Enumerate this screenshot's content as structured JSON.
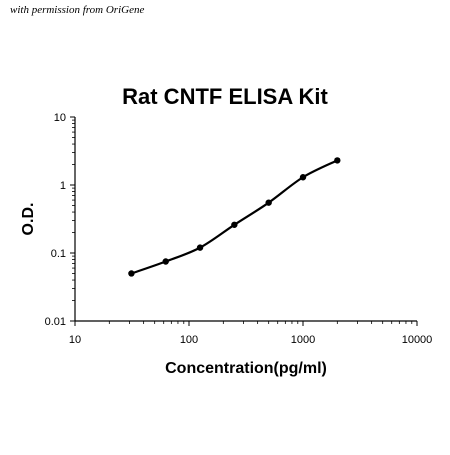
{
  "watermark": "with permission from OriGene",
  "chart_data": {
    "type": "line",
    "title": "Rat CNTF ELISA Kit",
    "xlabel": "Concentration(pg/ml)",
    "ylabel": "O.D.",
    "xscale": "log",
    "yscale": "log",
    "xlim": [
      10,
      10000
    ],
    "ylim": [
      0.01,
      10
    ],
    "x_ticks": [
      "10",
      "100",
      "1000",
      "10000"
    ],
    "y_ticks": [
      "0.01",
      "0.1",
      "1",
      "10"
    ],
    "grid": false,
    "legend": "none",
    "series": [
      {
        "x": [
          31.25,
          62.5,
          125,
          250,
          500,
          1000,
          2000
        ],
        "y": [
          0.05,
          0.075,
          0.12,
          0.26,
          0.55,
          1.3,
          2.3
        ]
      }
    ],
    "colors": {
      "line": "#000000",
      "axis": "#000000"
    }
  }
}
